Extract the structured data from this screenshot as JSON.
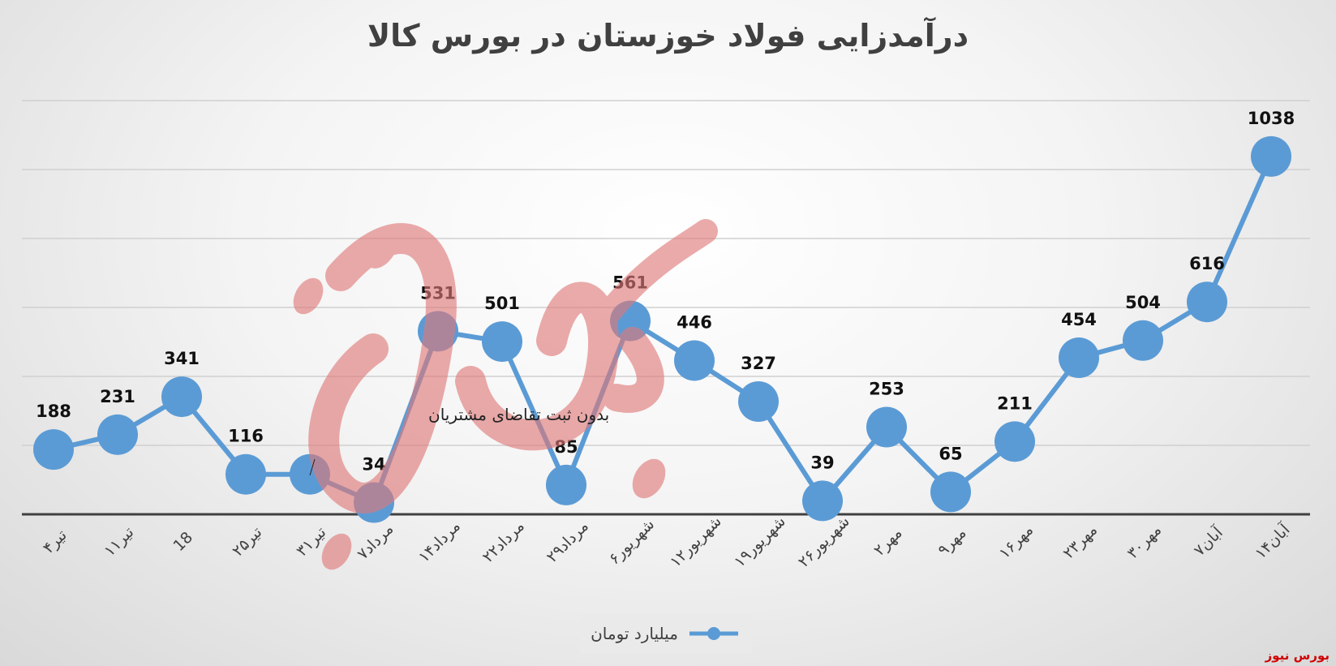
{
  "colors": {
    "series": "#5B9BD5",
    "axis": "#404040",
    "grid": "#d0d0d0",
    "watermark": "#e07878",
    "brand": "#d00000"
  },
  "brand": "بورس نیوز",
  "chart_data": {
    "type": "line",
    "title": "درآمدزایی فولاد خوزستان در بورس کالا",
    "categories": [
      "۴تیر",
      "۱۱تیر",
      "18",
      "۲۵تیر",
      "۳۱تیر",
      "۷مرداد",
      "۱۴مرداد",
      "۲۲مرداد",
      "۲۹مرداد",
      "۶شهریور",
      "۱۲شهریور",
      "۱۹شهریور",
      "۲۶شهریور",
      "۲مهر",
      "۹مهر",
      "۱۶مهر",
      "۲۳مهر",
      "۳۰مهر",
      "۷آبان",
      "۱۴آبان"
    ],
    "series": [
      {
        "name": "میلیارد تومان",
        "values": [
          188,
          231,
          341,
          116,
          116,
          34,
          531,
          501,
          85,
          561,
          446,
          327,
          39,
          253,
          65,
          211,
          454,
          504,
          616,
          1038
        ]
      }
    ],
    "data_labels": [
      "188",
      "231",
      "341",
      "116",
      "",
      "34",
      "531",
      "501",
      "85",
      "561",
      "446",
      "327",
      "39",
      "253",
      "65",
      "211",
      "454",
      "504",
      "616",
      "1038"
    ],
    "annotation": "بدون ثبت تقاضای مشتریان",
    "ylim": [
      0,
      1200
    ],
    "grid": true,
    "legend": "bottom"
  }
}
